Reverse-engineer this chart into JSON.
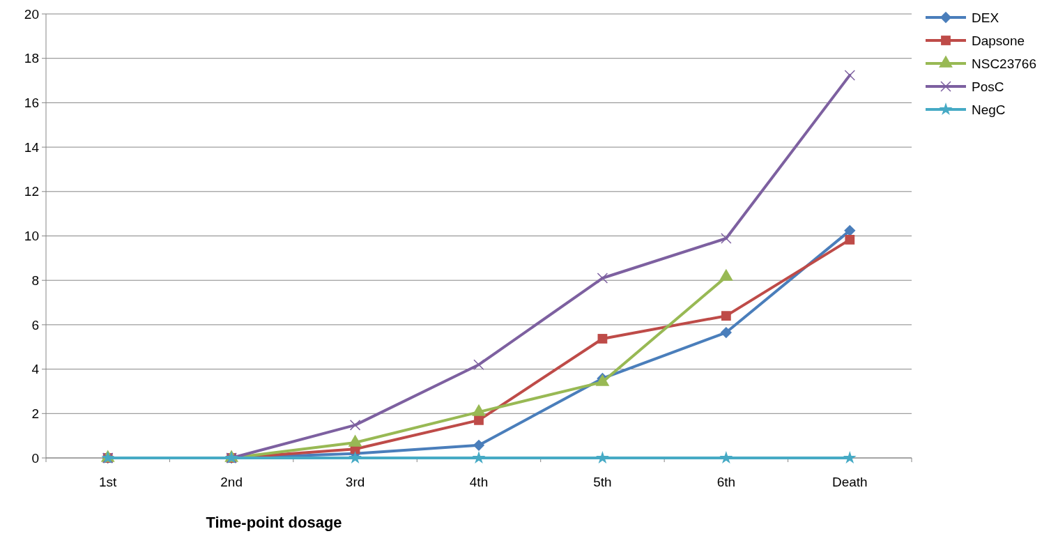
{
  "chart_data": {
    "type": "line",
    "xlabel": "Time-point dosage",
    "categories": [
      "1st",
      "2nd",
      "3rd",
      "4th",
      "5th",
      "6th",
      "Death"
    ],
    "ylim": [
      0,
      20
    ],
    "yticks": [
      0,
      2,
      4,
      6,
      8,
      10,
      12,
      14,
      16,
      18,
      20
    ],
    "grid": "y",
    "legend": "top right",
    "series": [
      {
        "name": "DEX",
        "color": "#4a7ebb",
        "marker": "diamond",
        "values": [
          0,
          0,
          0.2,
          0.57,
          3.58,
          5.65,
          10.24
        ]
      },
      {
        "name": "Dapsone",
        "color": "#be4b48",
        "marker": "square",
        "values": [
          0,
          0,
          0.4,
          1.7,
          5.37,
          6.4,
          9.83
        ]
      },
      {
        "name": "NSC23766",
        "color": "#98b954",
        "marker": "triangle",
        "values": [
          0,
          0,
          0.69,
          2.07,
          3.42,
          8.16,
          null
        ]
      },
      {
        "name": "PosC",
        "color": "#7d60a0",
        "marker": "cross",
        "values": [
          0,
          0,
          1.48,
          4.2,
          8.1,
          9.89,
          17.24
        ]
      },
      {
        "name": "NegC",
        "color": "#46aac5",
        "marker": "star",
        "values": [
          0,
          0,
          0,
          0,
          0,
          0,
          0
        ]
      }
    ]
  }
}
